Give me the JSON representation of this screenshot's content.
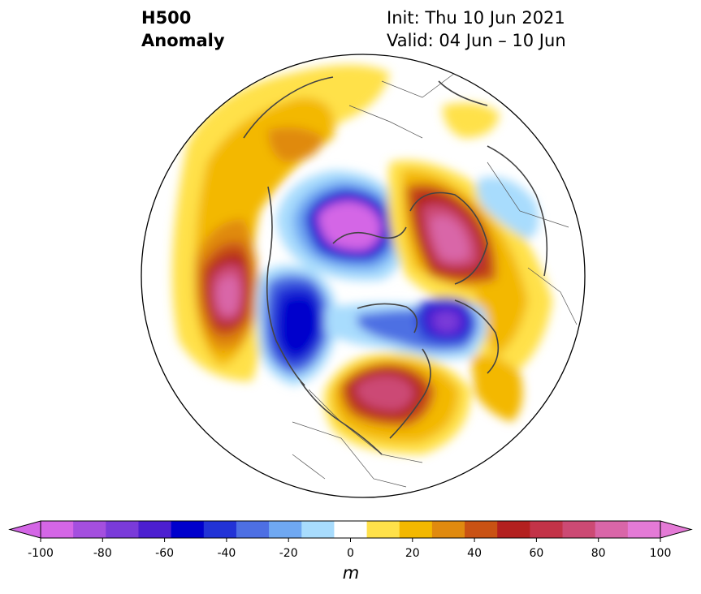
{
  "title": {
    "left_line1": "H500",
    "left_line2": "Anomaly",
    "right_line1": "Init: Thu 10 Jun 2021",
    "right_line2": "Valid: 04 Jun – 10 Jun"
  },
  "colorbar": {
    "units": "m",
    "ticks": [
      "-100",
      "-80",
      "-60",
      "-40",
      "-20",
      "0",
      "20",
      "40",
      "60",
      "80",
      "100"
    ],
    "tick_values": [
      -100,
      -80,
      -60,
      -40,
      -20,
      0,
      20,
      40,
      60,
      80,
      100
    ],
    "levels": [
      -100,
      -90,
      -80,
      -70,
      -60,
      -50,
      -40,
      -30,
      -20,
      -10,
      10,
      20,
      30,
      40,
      50,
      60,
      70,
      80,
      90,
      100
    ],
    "colors": [
      "#d466e6",
      "#a44fdf",
      "#7a3bd9",
      "#4c1fd0",
      "#0000cc",
      "#2233d6",
      "#4d6fe3",
      "#6fa8f2",
      "#a8dcfd",
      "#ffffff",
      "#ffe14a",
      "#f3b800",
      "#e08a0f",
      "#c95214",
      "#b3201f",
      "#c33348",
      "#cc4a74",
      "#d966a8",
      "#e47ad6"
    ],
    "under_color": "#d466e6",
    "over_color": "#e47ad6"
  },
  "map": {
    "projection": "north-polar-stereographic",
    "anomaly_centers": [
      {
        "region": "north-pacific",
        "sign": "positive",
        "peak": 70
      },
      {
        "region": "siberia-arctic",
        "sign": "negative",
        "peak": -80
      },
      {
        "region": "scandinavia-europe",
        "sign": "positive",
        "peak": 80
      },
      {
        "region": "alaska-northwest-canada",
        "sign": "negative",
        "peak": -60
      },
      {
        "region": "greenland",
        "sign": "negative",
        "peak": -70
      },
      {
        "region": "great-lakes-northeast-us",
        "sign": "positive",
        "peak": 60
      }
    ]
  }
}
